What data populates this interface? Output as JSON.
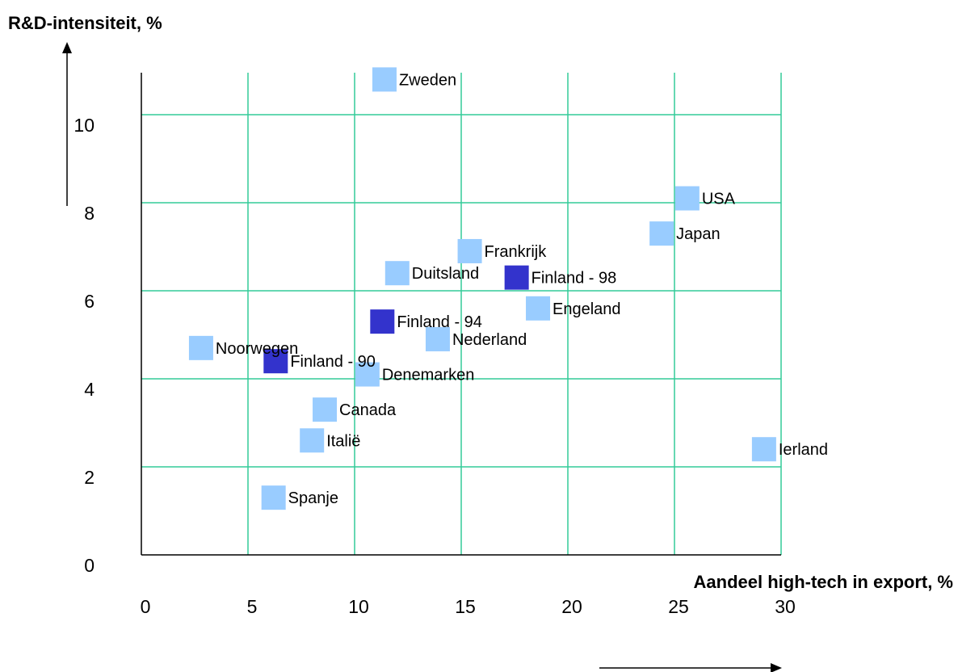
{
  "chart_data": {
    "type": "scatter",
    "title": "",
    "ylabel": "R&D-intensiteit, %",
    "xlabel": "Aandeel high-tech in export, %",
    "xlim": [
      0,
      30
    ],
    "ylim": [
      0,
      11
    ],
    "xticks": [
      "0",
      "5",
      "10",
      "15",
      "20",
      "25",
      "30"
    ],
    "yticks": [
      "0",
      "2",
      "4",
      "6",
      "8",
      "10"
    ],
    "grid": true,
    "colors": {
      "country": "#99ccff",
      "finland": "#3333cc",
      "grid": "#33cc99"
    },
    "points": [
      {
        "label": "Zweden",
        "x": 11.4,
        "y": 10.8,
        "group": "country"
      },
      {
        "label": "USA",
        "x": 25.6,
        "y": 8.1,
        "group": "country"
      },
      {
        "label": "Japan",
        "x": 24.4,
        "y": 7.3,
        "group": "country"
      },
      {
        "label": "Frankrijk",
        "x": 15.4,
        "y": 6.9,
        "group": "country"
      },
      {
        "label": "Duitsland",
        "x": 12.0,
        "y": 6.4,
        "group": "country"
      },
      {
        "label": "Finland - 98",
        "x": 17.6,
        "y": 6.3,
        "group": "finland"
      },
      {
        "label": "Engeland",
        "x": 18.6,
        "y": 5.6,
        "group": "country"
      },
      {
        "label": "Finland - 94",
        "x": 11.3,
        "y": 5.3,
        "group": "finland"
      },
      {
        "label": "Nederland",
        "x": 13.9,
        "y": 4.9,
        "group": "country"
      },
      {
        "label": "Noorwegen",
        "x": 2.8,
        "y": 4.7,
        "group": "country"
      },
      {
        "label": "Finland - 90",
        "x": 6.3,
        "y": 4.4,
        "group": "finland"
      },
      {
        "label": "Denemarken",
        "x": 10.6,
        "y": 4.1,
        "group": "country"
      },
      {
        "label": "Canada",
        "x": 8.6,
        "y": 3.3,
        "group": "country"
      },
      {
        "label": "Italië",
        "x": 8.0,
        "y": 2.6,
        "group": "country"
      },
      {
        "label": "Ierland",
        "x": 29.2,
        "y": 2.4,
        "group": "country"
      },
      {
        "label": "Spanje",
        "x": 6.2,
        "y": 1.3,
        "group": "country"
      }
    ]
  }
}
